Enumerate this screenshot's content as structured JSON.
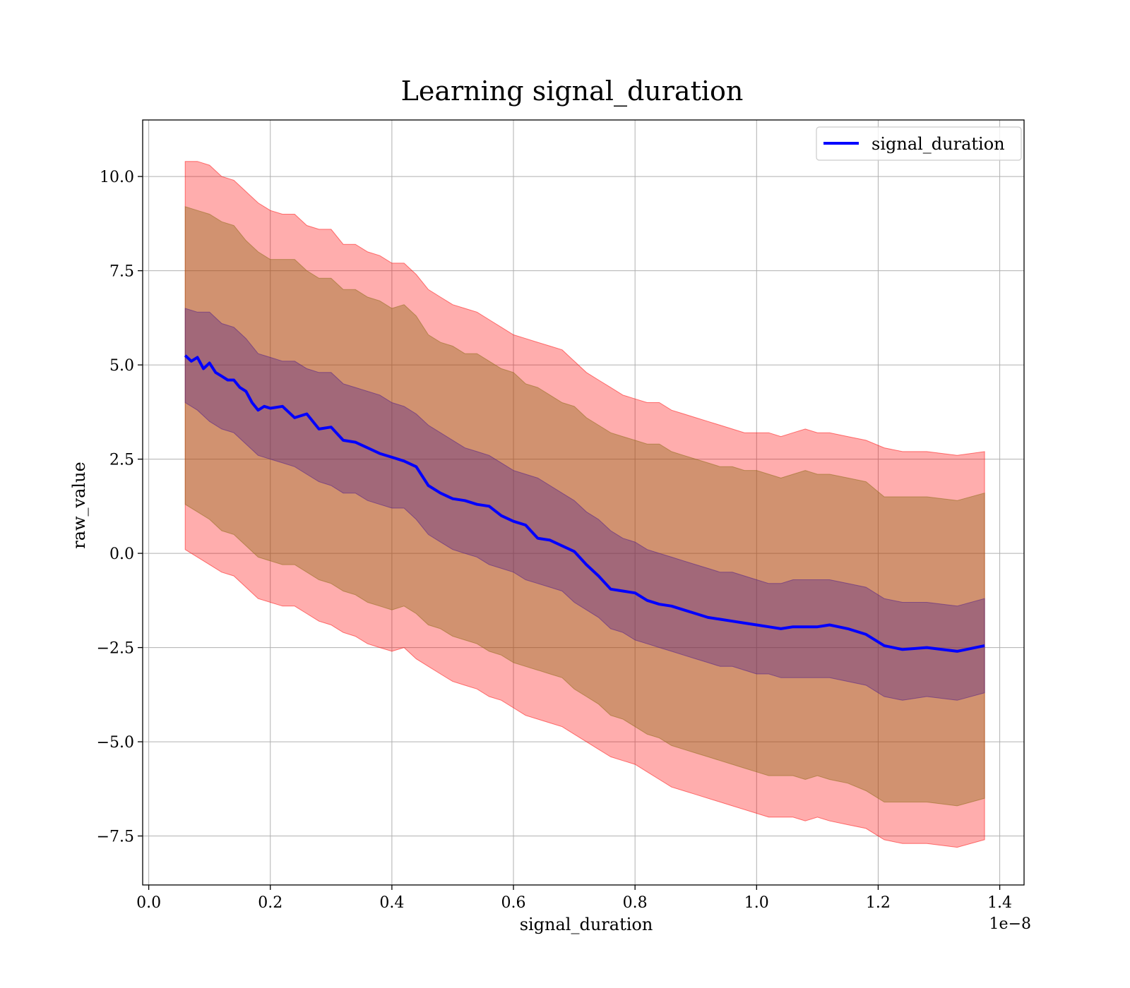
{
  "chart_data": {
    "type": "line",
    "title": "Learning signal_duration",
    "xlabel": "signal_duration",
    "ylabel": "raw_value",
    "x_offset_label": "1e−8",
    "xlim": [
      -0.01,
      1.44
    ],
    "ylim": [
      -8.8,
      11.5
    ],
    "x_ticks": [
      0.0,
      0.2,
      0.4,
      0.6,
      0.8,
      1.0,
      1.2,
      1.4
    ],
    "x_tick_labels": [
      "0.0",
      "0.2",
      "0.4",
      "0.6",
      "0.8",
      "1.0",
      "1.2",
      "1.4"
    ],
    "y_ticks": [
      -7.5,
      -5.0,
      -2.5,
      0.0,
      2.5,
      5.0,
      7.5,
      10.0
    ],
    "y_tick_labels": [
      "−7.5",
      "−5.0",
      "−2.5",
      "0.0",
      "2.5",
      "5.0",
      "7.5",
      "10.0"
    ],
    "grid": true,
    "legend_position": "top-right",
    "series": [
      {
        "name": "signal_duration",
        "color": "#0000ff",
        "x": [
          0.06,
          0.07,
          0.08,
          0.09,
          0.1,
          0.11,
          0.12,
          0.13,
          0.14,
          0.15,
          0.16,
          0.17,
          0.18,
          0.19,
          0.2,
          0.22,
          0.24,
          0.26,
          0.28,
          0.3,
          0.32,
          0.34,
          0.36,
          0.38,
          0.4,
          0.42,
          0.44,
          0.46,
          0.48,
          0.5,
          0.52,
          0.54,
          0.56,
          0.58,
          0.6,
          0.62,
          0.64,
          0.66,
          0.68,
          0.7,
          0.72,
          0.74,
          0.76,
          0.78,
          0.8,
          0.82,
          0.84,
          0.86,
          0.88,
          0.9,
          0.92,
          0.94,
          0.96,
          0.98,
          1.0,
          1.02,
          1.04,
          1.06,
          1.08,
          1.1,
          1.12,
          1.15,
          1.18,
          1.21,
          1.24,
          1.28,
          1.33,
          1.375
        ],
        "y": [
          5.25,
          5.1,
          5.2,
          4.9,
          5.05,
          4.8,
          4.7,
          4.6,
          4.6,
          4.4,
          4.3,
          4.0,
          3.8,
          3.9,
          3.85,
          3.9,
          3.6,
          3.7,
          3.3,
          3.35,
          3.0,
          2.95,
          2.8,
          2.65,
          2.55,
          2.45,
          2.3,
          1.8,
          1.6,
          1.45,
          1.4,
          1.3,
          1.25,
          1.0,
          0.85,
          0.75,
          0.4,
          0.35,
          0.2,
          0.05,
          -0.3,
          -0.6,
          -0.95,
          -1.0,
          -1.05,
          -1.25,
          -1.35,
          -1.4,
          -1.5,
          -1.6,
          -1.7,
          -1.75,
          -1.8,
          -1.85,
          -1.9,
          -1.95,
          -2.0,
          -1.95,
          -1.95,
          -1.95,
          -1.9,
          -2.0,
          -2.15,
          -2.45,
          -2.55,
          -2.5,
          -2.6,
          -2.45
        ]
      }
    ],
    "bands": [
      {
        "level": "outer",
        "color": "#ff0000",
        "opacity": 0.32,
        "x": [
          0.06,
          0.08,
          0.1,
          0.12,
          0.14,
          0.16,
          0.18,
          0.2,
          0.22,
          0.24,
          0.26,
          0.28,
          0.3,
          0.32,
          0.34,
          0.36,
          0.38,
          0.4,
          0.42,
          0.44,
          0.46,
          0.48,
          0.5,
          0.52,
          0.54,
          0.56,
          0.58,
          0.6,
          0.62,
          0.64,
          0.66,
          0.68,
          0.7,
          0.72,
          0.74,
          0.76,
          0.78,
          0.8,
          0.82,
          0.84,
          0.86,
          0.88,
          0.9,
          0.92,
          0.94,
          0.96,
          0.98,
          1.0,
          1.02,
          1.04,
          1.06,
          1.08,
          1.1,
          1.12,
          1.15,
          1.18,
          1.21,
          1.24,
          1.28,
          1.33,
          1.375
        ],
        "upper": [
          10.4,
          10.4,
          10.3,
          10.0,
          9.9,
          9.6,
          9.3,
          9.1,
          9.0,
          9.0,
          8.7,
          8.6,
          8.6,
          8.2,
          8.2,
          8.0,
          7.9,
          7.7,
          7.7,
          7.4,
          7.0,
          6.8,
          6.6,
          6.5,
          6.4,
          6.2,
          6.0,
          5.8,
          5.7,
          5.6,
          5.5,
          5.4,
          5.1,
          4.8,
          4.6,
          4.4,
          4.2,
          4.1,
          4.0,
          4.0,
          3.8,
          3.7,
          3.6,
          3.5,
          3.4,
          3.3,
          3.2,
          3.2,
          3.2,
          3.1,
          3.2,
          3.3,
          3.2,
          3.2,
          3.1,
          3.0,
          2.8,
          2.7,
          2.7,
          2.6,
          2.7
        ],
        "lower": [
          0.1,
          -0.1,
          -0.3,
          -0.5,
          -0.6,
          -0.9,
          -1.2,
          -1.3,
          -1.4,
          -1.4,
          -1.6,
          -1.8,
          -1.9,
          -2.1,
          -2.2,
          -2.4,
          -2.5,
          -2.6,
          -2.5,
          -2.8,
          -3.0,
          -3.2,
          -3.4,
          -3.5,
          -3.6,
          -3.8,
          -3.9,
          -4.1,
          -4.3,
          -4.4,
          -4.5,
          -4.6,
          -4.8,
          -5.0,
          -5.2,
          -5.4,
          -5.5,
          -5.6,
          -5.8,
          -6.0,
          -6.2,
          -6.3,
          -6.4,
          -6.5,
          -6.6,
          -6.7,
          -6.8,
          -6.9,
          -7.0,
          -7.0,
          -7.0,
          -7.1,
          -7.0,
          -7.1,
          -7.2,
          -7.3,
          -7.6,
          -7.7,
          -7.7,
          -7.8,
          -7.6
        ]
      },
      {
        "level": "middle",
        "color": "#8b6914",
        "opacity": 0.4,
        "x": [
          0.06,
          0.08,
          0.1,
          0.12,
          0.14,
          0.16,
          0.18,
          0.2,
          0.22,
          0.24,
          0.26,
          0.28,
          0.3,
          0.32,
          0.34,
          0.36,
          0.38,
          0.4,
          0.42,
          0.44,
          0.46,
          0.48,
          0.5,
          0.52,
          0.54,
          0.56,
          0.58,
          0.6,
          0.62,
          0.64,
          0.66,
          0.68,
          0.7,
          0.72,
          0.74,
          0.76,
          0.78,
          0.8,
          0.82,
          0.84,
          0.86,
          0.88,
          0.9,
          0.92,
          0.94,
          0.96,
          0.98,
          1.0,
          1.02,
          1.04,
          1.06,
          1.08,
          1.1,
          1.12,
          1.15,
          1.18,
          1.21,
          1.24,
          1.28,
          1.33,
          1.375
        ],
        "upper": [
          9.2,
          9.1,
          9.0,
          8.8,
          8.7,
          8.3,
          8.0,
          7.8,
          7.8,
          7.8,
          7.5,
          7.3,
          7.3,
          7.0,
          7.0,
          6.8,
          6.7,
          6.5,
          6.6,
          6.3,
          5.8,
          5.6,
          5.5,
          5.3,
          5.3,
          5.1,
          4.9,
          4.8,
          4.5,
          4.4,
          4.2,
          4.0,
          3.9,
          3.6,
          3.4,
          3.2,
          3.1,
          3.0,
          2.9,
          2.9,
          2.7,
          2.6,
          2.5,
          2.4,
          2.3,
          2.3,
          2.2,
          2.2,
          2.1,
          2.0,
          2.1,
          2.2,
          2.1,
          2.1,
          2.0,
          1.9,
          1.5,
          1.5,
          1.5,
          1.4,
          1.6
        ],
        "lower": [
          1.3,
          1.1,
          0.9,
          0.6,
          0.5,
          0.2,
          -0.1,
          -0.2,
          -0.3,
          -0.3,
          -0.5,
          -0.7,
          -0.8,
          -1.0,
          -1.1,
          -1.3,
          -1.4,
          -1.5,
          -1.4,
          -1.6,
          -1.9,
          -2.0,
          -2.2,
          -2.3,
          -2.4,
          -2.6,
          -2.7,
          -2.9,
          -3.0,
          -3.1,
          -3.2,
          -3.3,
          -3.6,
          -3.8,
          -4.0,
          -4.3,
          -4.4,
          -4.6,
          -4.8,
          -4.9,
          -5.1,
          -5.2,
          -5.3,
          -5.4,
          -5.5,
          -5.6,
          -5.7,
          -5.8,
          -5.9,
          -5.9,
          -5.9,
          -6.0,
          -5.9,
          -6.0,
          -6.1,
          -6.3,
          -6.6,
          -6.6,
          -6.6,
          -6.7,
          -6.5
        ]
      },
      {
        "level": "inner",
        "color": "#4b1a8a",
        "opacity": 0.35,
        "x": [
          0.06,
          0.08,
          0.1,
          0.12,
          0.14,
          0.16,
          0.18,
          0.2,
          0.22,
          0.24,
          0.26,
          0.28,
          0.3,
          0.32,
          0.34,
          0.36,
          0.38,
          0.4,
          0.42,
          0.44,
          0.46,
          0.48,
          0.5,
          0.52,
          0.54,
          0.56,
          0.58,
          0.6,
          0.62,
          0.64,
          0.66,
          0.68,
          0.7,
          0.72,
          0.74,
          0.76,
          0.78,
          0.8,
          0.82,
          0.84,
          0.86,
          0.88,
          0.9,
          0.92,
          0.94,
          0.96,
          0.98,
          1.0,
          1.02,
          1.04,
          1.06,
          1.08,
          1.1,
          1.12,
          1.15,
          1.18,
          1.21,
          1.24,
          1.28,
          1.33,
          1.375
        ],
        "upper": [
          6.5,
          6.4,
          6.4,
          6.1,
          6.0,
          5.7,
          5.3,
          5.2,
          5.1,
          5.1,
          4.9,
          4.8,
          4.8,
          4.5,
          4.4,
          4.3,
          4.2,
          4.0,
          3.9,
          3.7,
          3.4,
          3.2,
          3.0,
          2.8,
          2.7,
          2.6,
          2.4,
          2.2,
          2.1,
          2.0,
          1.8,
          1.6,
          1.4,
          1.1,
          0.9,
          0.6,
          0.4,
          0.3,
          0.1,
          0.0,
          -0.1,
          -0.2,
          -0.3,
          -0.4,
          -0.5,
          -0.5,
          -0.6,
          -0.7,
          -0.8,
          -0.8,
          -0.7,
          -0.7,
          -0.7,
          -0.7,
          -0.8,
          -0.9,
          -1.2,
          -1.3,
          -1.3,
          -1.4,
          -1.2
        ],
        "lower": [
          4.0,
          3.8,
          3.5,
          3.3,
          3.2,
          2.9,
          2.6,
          2.5,
          2.4,
          2.3,
          2.1,
          1.9,
          1.8,
          1.6,
          1.6,
          1.4,
          1.3,
          1.2,
          1.2,
          0.9,
          0.5,
          0.3,
          0.1,
          0.0,
          -0.1,
          -0.3,
          -0.4,
          -0.5,
          -0.7,
          -0.8,
          -0.9,
          -1.0,
          -1.3,
          -1.5,
          -1.7,
          -2.0,
          -2.1,
          -2.3,
          -2.4,
          -2.5,
          -2.6,
          -2.7,
          -2.8,
          -2.9,
          -3.0,
          -3.0,
          -3.1,
          -3.2,
          -3.2,
          -3.3,
          -3.3,
          -3.3,
          -3.3,
          -3.3,
          -3.4,
          -3.5,
          -3.8,
          -3.9,
          -3.8,
          -3.9,
          -3.7
        ]
      }
    ]
  }
}
